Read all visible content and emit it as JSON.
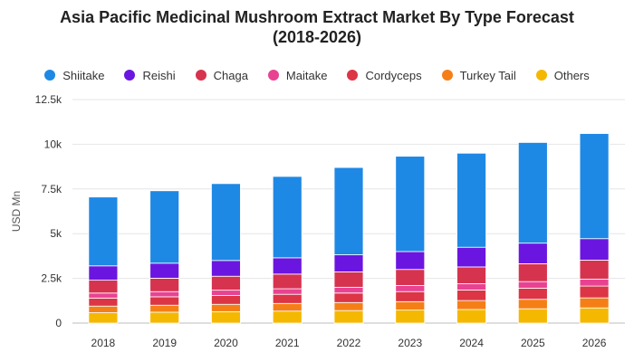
{
  "title_line1": "Asia Pacific Medicinal Mushroom Extract Market By Type Forecast",
  "title_line2": "(2018-2026)",
  "chart_data": {
    "type": "bar",
    "stacked": true,
    "title": "Asia Pacific Medicinal Mushroom Extract Market By Type Forecast (2018-2026)",
    "xlabel": "",
    "ylabel": "USD Mn",
    "ylim": [
      0,
      12500
    ],
    "y_ticks": [
      0,
      2500,
      5000,
      7500,
      10000,
      12500
    ],
    "y_tick_labels": [
      "0",
      "2.5k",
      "5k",
      "7.5k",
      "10k",
      "12.5k"
    ],
    "categories": [
      "2018",
      "2019",
      "2020",
      "2021",
      "2022",
      "2023",
      "2024",
      "2025",
      "2026"
    ],
    "grid": true,
    "legend_position": "top",
    "series": [
      {
        "name": "Others",
        "color": "#f5b800",
        "values": [
          580,
          610,
          640,
          670,
          700,
          730,
          760,
          800,
          850
        ]
      },
      {
        "name": "Turkey Tail",
        "color": "#f57f17",
        "values": [
          370,
          390,
          410,
          430,
          450,
          470,
          500,
          530,
          560
        ]
      },
      {
        "name": "Cordyceps",
        "color": "#dc3545",
        "values": [
          450,
          470,
          490,
          510,
          530,
          560,
          590,
          620,
          660
        ]
      },
      {
        "name": "Maitake",
        "color": "#e84393",
        "values": [
          280,
          290,
          300,
          310,
          320,
          340,
          350,
          370,
          390
        ]
      },
      {
        "name": "Chaga",
        "color": "#d6334f",
        "values": [
          720,
          750,
          780,
          820,
          860,
          900,
          940,
          1000,
          1060
        ]
      },
      {
        "name": "Reishi",
        "color": "#6a16e0",
        "values": [
          800,
          840,
          880,
          910,
          960,
          1000,
          1100,
          1150,
          1200
        ]
      },
      {
        "name": "Shiitake",
        "color": "#1e88e5",
        "values": [
          3850,
          4050,
          4300,
          4550,
          4880,
          5330,
          5260,
          5630,
          5880
        ]
      }
    ],
    "legend_order": [
      "Shiitake",
      "Reishi",
      "Chaga",
      "Maitake",
      "Cordyceps",
      "Turkey Tail",
      "Others"
    ]
  }
}
